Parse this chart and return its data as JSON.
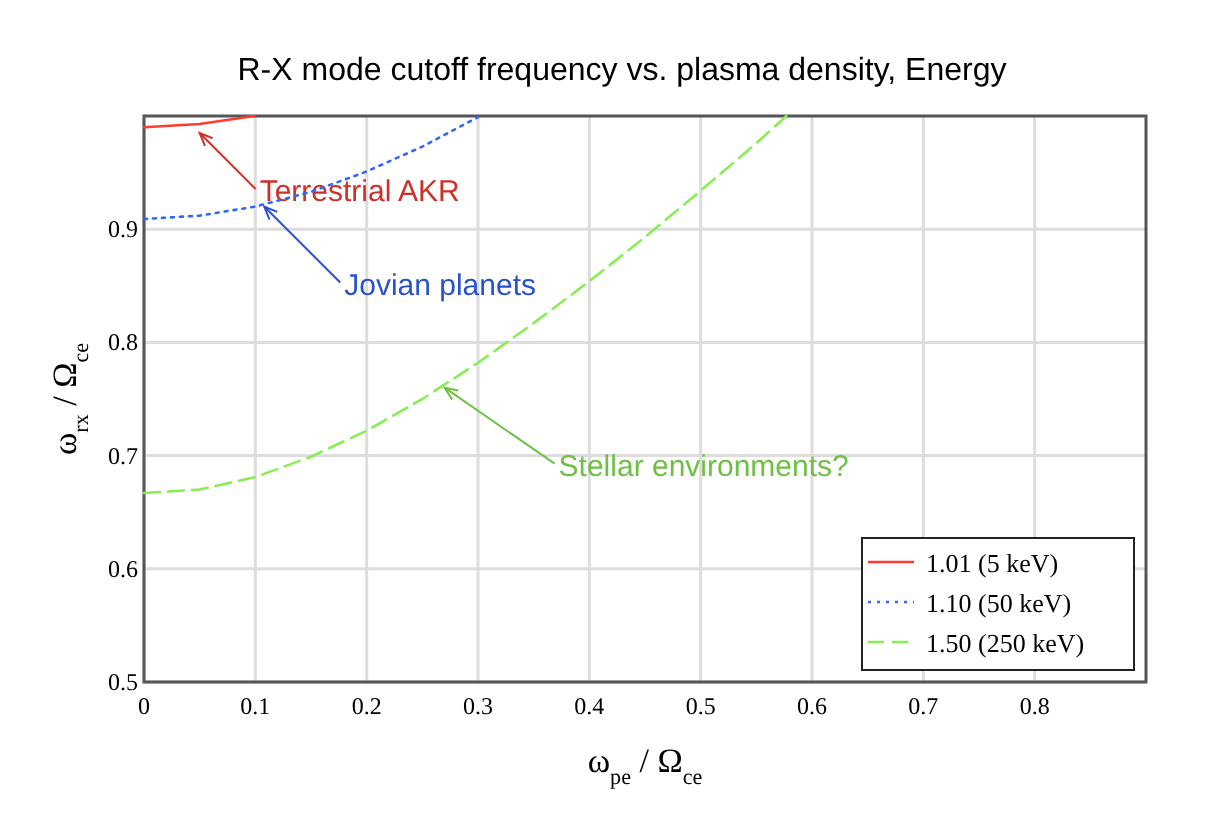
{
  "chart_data": {
    "type": "line",
    "title": "R-X mode cutoff frequency vs. plasma density, Energy",
    "xlabel": "ω$_{pe}$ / Ω$_{ce}$",
    "ylabel": "ω$_{rx}$ / Ω$_{ce}$",
    "xlim": [
      0,
      0.9
    ],
    "ylim": [
      0.5,
      1.0
    ],
    "xticks": [
      0,
      0.1,
      0.2,
      0.3,
      0.4,
      0.5,
      0.6,
      0.7,
      0.8
    ],
    "yticks": [
      0.5,
      0.6,
      0.7,
      0.8,
      0.9
    ],
    "grid": true,
    "legend": "bottom right",
    "series": [
      {
        "name": "1.01 (5 keV)",
        "color": "#ff3b30",
        "line_style": "solid",
        "x": [
          0,
          0.05,
          0.099
        ],
        "values": [
          0.99,
          0.993,
          1.0
        ]
      },
      {
        "name": "1.10 (50 keV)",
        "color": "#3366ff",
        "line_style": "dotted",
        "x": [
          0,
          0.05,
          0.1,
          0.15,
          0.2,
          0.25,
          0.3
        ],
        "values": [
          0.909,
          0.912,
          0.92,
          0.933,
          0.951,
          0.973,
          0.999
        ]
      },
      {
        "name": "1.50 (250 keV)",
        "color": "#88ee55",
        "line_style": "dashed",
        "x": [
          0,
          0.05,
          0.1,
          0.15,
          0.2,
          0.25,
          0.3,
          0.35,
          0.4,
          0.45,
          0.5,
          0.55,
          0.577
        ],
        "values": [
          0.667,
          0.67,
          0.681,
          0.699,
          0.722,
          0.75,
          0.782,
          0.817,
          0.854,
          0.893,
          0.934,
          0.976,
          1.0
        ]
      }
    ],
    "annotations": [
      {
        "text": "Terrestrial AKR",
        "x": 0.05,
        "y": 0.985
      },
      {
        "text": "Jovian planets",
        "x": 0.108,
        "y": 0.92
      },
      {
        "text": "Stellar environments?",
        "x": 0.27,
        "y": 0.76
      }
    ]
  }
}
